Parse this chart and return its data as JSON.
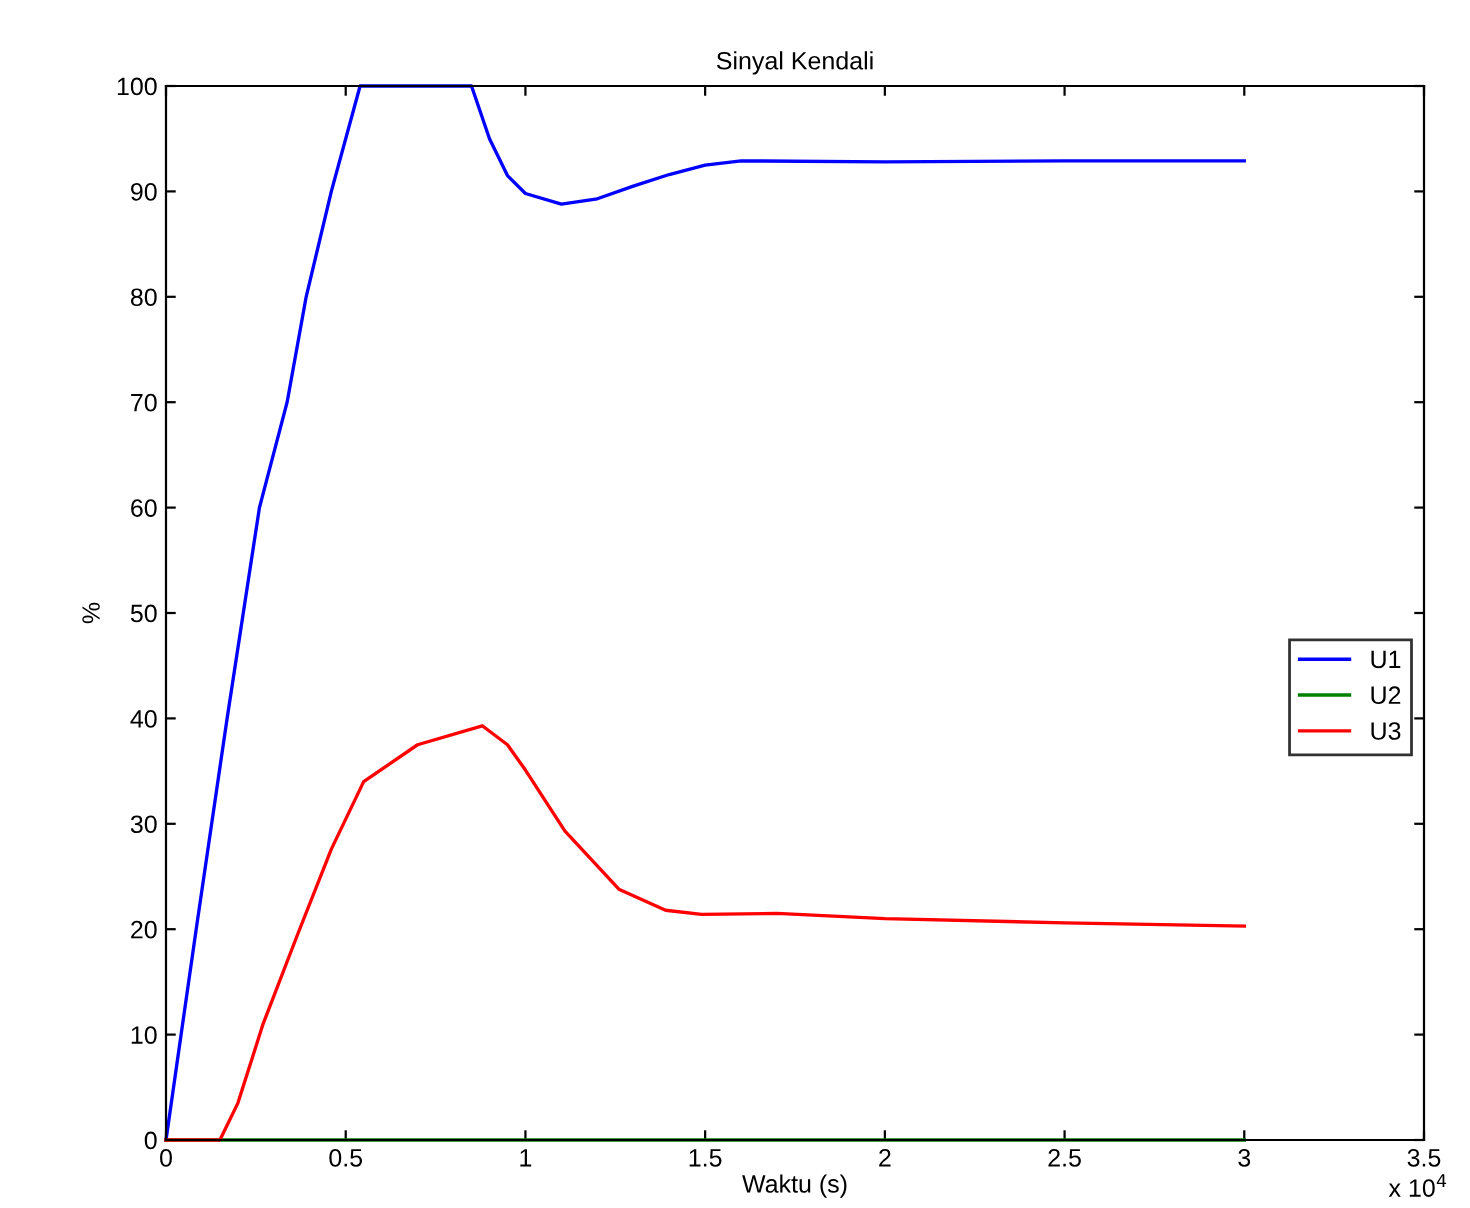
{
  "chart_data": {
    "type": "line",
    "title": "Sinyal Kendali",
    "xlabel": "Waktu (s)",
    "ylabel": "%",
    "annotations": [
      "x 10$^{4}$"
    ],
    "xlim": [
      0,
      3.5
    ],
    "xticks": [
      0,
      0.5,
      1,
      1.5,
      2,
      2.5,
      3,
      3.5
    ],
    "ylim": [
      0,
      100
    ],
    "yticks": [
      0,
      10,
      20,
      30,
      40,
      50,
      60,
      70,
      80,
      90,
      100
    ],
    "grid": false,
    "legend": "right",
    "marker": "none",
    "line_style": "solid",
    "series": [
      {
        "name": "U1",
        "color": "#0000ff",
        "x": [
          0,
          0.084,
          0.17,
          0.215,
          0.26,
          0.337,
          0.39,
          0.46,
          0.54,
          0.85,
          0.9,
          0.95,
          1.0,
          1.1,
          1.2,
          1.3,
          1.4,
          1.5,
          1.6,
          2.0,
          2.5,
          3.0
        ],
        "values": [
          0,
          20,
          40,
          50,
          60,
          70,
          80,
          90,
          100,
          100,
          95,
          91.5,
          89.8,
          88.8,
          89.3,
          90.5,
          91.6,
          92.5,
          92.9,
          92.8,
          92.9,
          92.9
        ]
      },
      {
        "name": "U2",
        "color": "#008000",
        "x": [
          0,
          3.0
        ],
        "values": [
          0,
          0
        ]
      },
      {
        "name": "U3",
        "color": "#ff0000",
        "x": [
          0,
          0.15,
          0.2,
          0.27,
          0.365,
          0.46,
          0.55,
          0.7,
          0.88,
          0.95,
          1.0,
          1.11,
          1.26,
          1.39,
          1.49,
          1.7,
          2.0,
          2.5,
          3.0
        ],
        "values": [
          0,
          0,
          3.5,
          11,
          19.4,
          27.6,
          34,
          37.5,
          39.3,
          37.5,
          35.1,
          29.3,
          23.8,
          21.8,
          21.4,
          21.5,
          21,
          20.6,
          20.3
        ]
      }
    ]
  }
}
